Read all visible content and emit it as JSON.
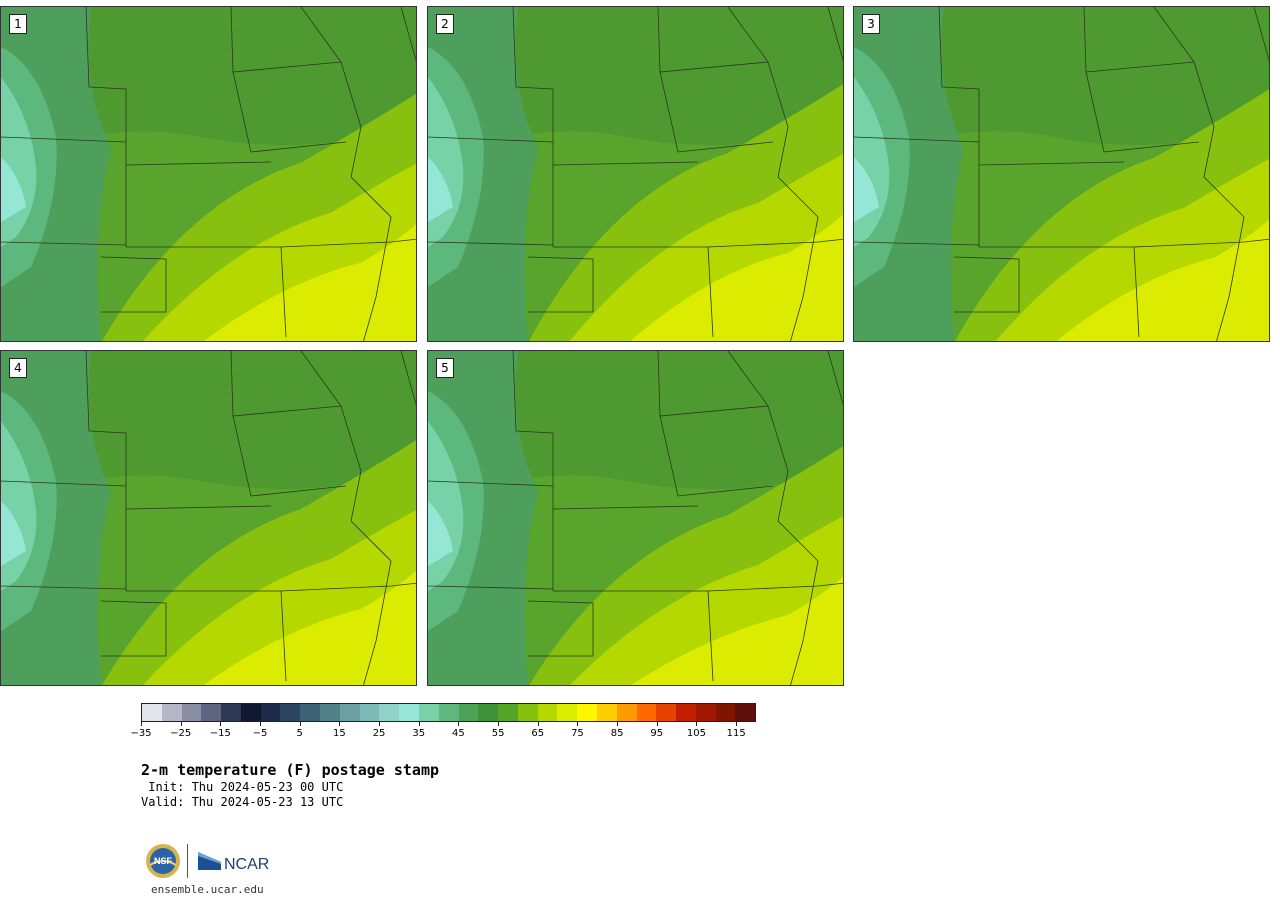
{
  "members": [
    {
      "label": "1",
      "warmth": 0.62
    },
    {
      "label": "2",
      "warmth": 0.7
    },
    {
      "label": "3",
      "warmth": 0.66
    },
    {
      "label": "4",
      "warmth": 0.6
    },
    {
      "label": "5",
      "warmth": 0.55
    }
  ],
  "colorbar": {
    "colors": [
      "#e4e4ee",
      "#b6b6c8",
      "#8a8ea4",
      "#5c6680",
      "#2c3a56",
      "#0f1a30",
      "#1b2b48",
      "#2a4662",
      "#3c6278",
      "#528089",
      "#6aa0a4",
      "#7dbab8",
      "#8ed2c8",
      "#96e6d6",
      "#78d2a8",
      "#5cb87c",
      "#4ca358",
      "#3f9238",
      "#55a528",
      "#88c010",
      "#b4d800",
      "#dcec00",
      "#fff600",
      "#ffcc00",
      "#ff9900",
      "#ff6a00",
      "#e84200",
      "#c41e00",
      "#a01800",
      "#801400",
      "#5e1008"
    ],
    "tick_values": [
      "−35",
      "−25",
      "−15",
      "−5",
      "5",
      "15",
      "25",
      "35",
      "45",
      "55",
      "65",
      "75",
      "85",
      "95",
      "105",
      "115"
    ]
  },
  "title": "2-m temperature (F) postage stamp",
  "init": " Init: Thu 2024-05-23 00 UTC",
  "valid": "Valid: Thu 2024-05-23 13 UTC",
  "logos": {
    "nsf_text": "NSF",
    "ncar_text": "NCAR"
  },
  "site": "ensemble.ucar.edu"
}
